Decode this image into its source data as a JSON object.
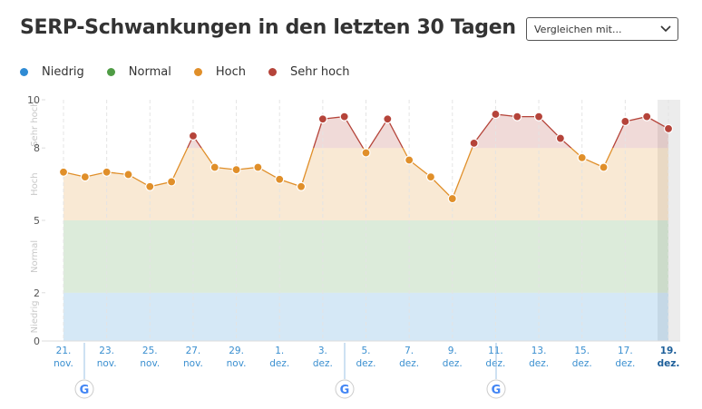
{
  "title": "SERP-Schwankungen in den letzten 30 Tagen",
  "dropdown": "Vergleichen mit...",
  "chart_data": {
    "type": "line",
    "categories": [
      "21. nov.",
      null,
      "23. nov.",
      null,
      "25. nov.",
      null,
      "27. nov.",
      null,
      "29. nov.",
      null,
      "1. dez.",
      null,
      "3. dez.",
      null,
      "5. dez.",
      null,
      "7. dez.",
      null,
      "9. dez.",
      null,
      "11. dez.",
      null,
      "13. dez.",
      null,
      "15. dez.",
      null,
      "17. dez.",
      null,
      "19. dez."
    ],
    "values": [
      7.0,
      6.8,
      7.0,
      6.9,
      6.4,
      6.6,
      8.5,
      7.2,
      7.1,
      7.2,
      6.7,
      6.4,
      9.2,
      9.3,
      7.8,
      9.2,
      7.5,
      6.8,
      5.9,
      8.2,
      9.4,
      9.3,
      9.3,
      8.4,
      7.6,
      7.2,
      9.1,
      9.3,
      8.8
    ],
    "bands": [
      {
        "name": "Niedrig",
        "color": "#2f8bd4",
        "range": [
          0,
          2
        ]
      },
      {
        "name": "Normal",
        "color": "#4f9c45",
        "range": [
          2,
          5
        ]
      },
      {
        "name": "Hoch",
        "color": "#e08f2a",
        "range": [
          5,
          8
        ]
      },
      {
        "name": "Sehr hoch",
        "color": "#b5443a",
        "range": [
          8,
          10
        ]
      }
    ],
    "ylim": [
      0,
      10
    ],
    "yticks": [
      0,
      2,
      5,
      8,
      10
    ]
  }
}
